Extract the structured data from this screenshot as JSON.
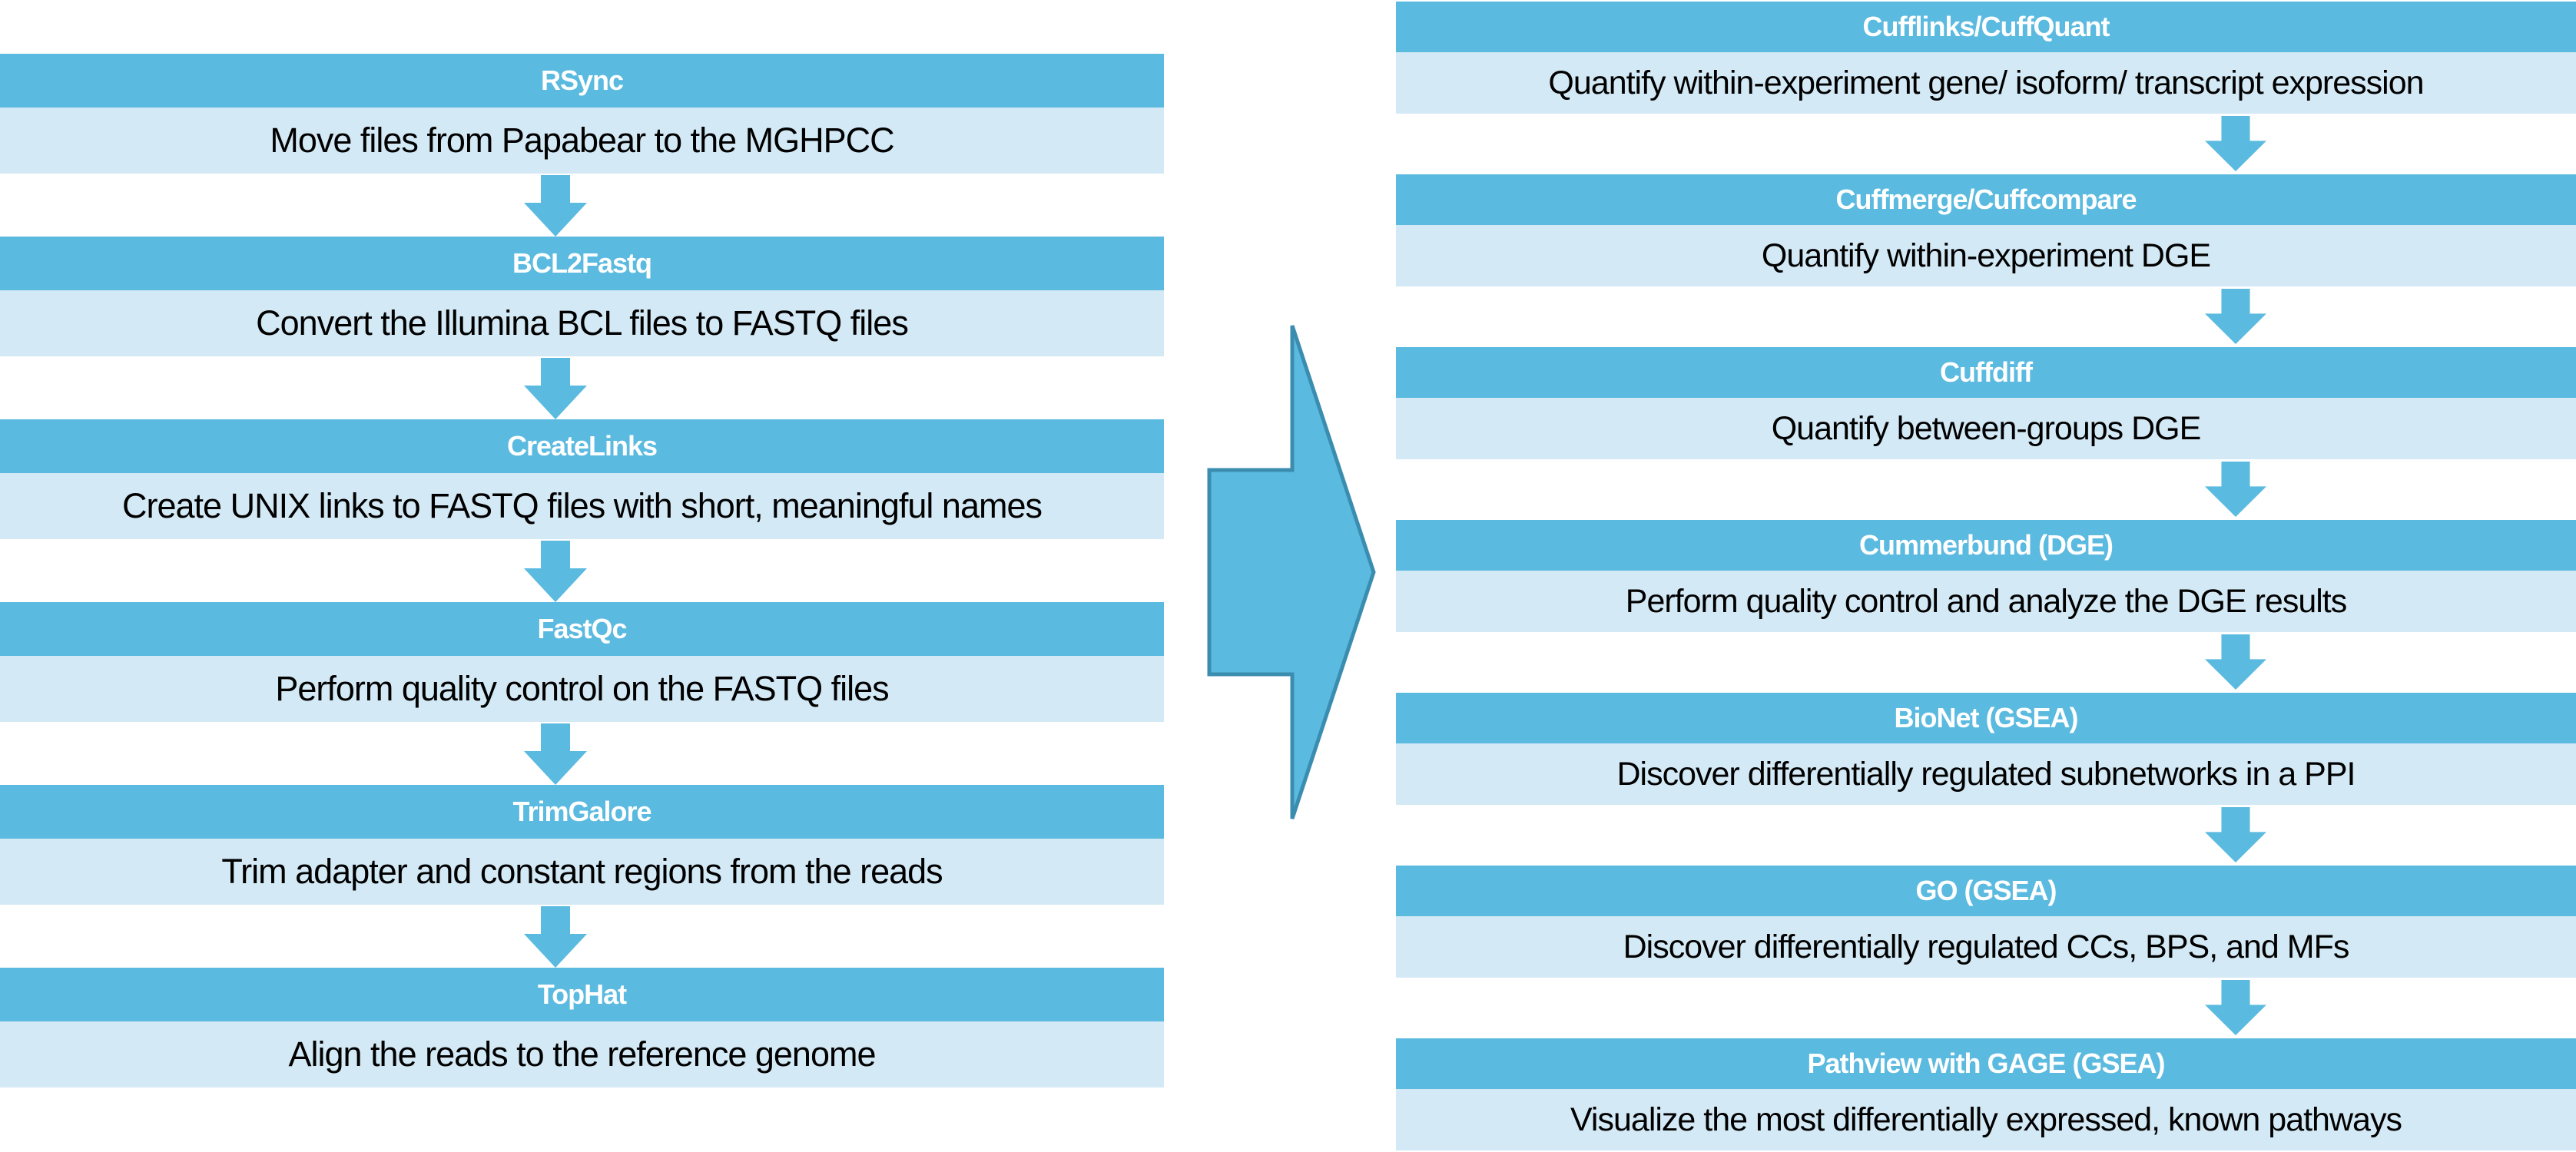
{
  "colors": {
    "header_fill": "#5bbadf",
    "description_fill": "#d3e9f5",
    "arrow_fill": "#5bbadf",
    "arrow_stroke": "#3b8db0"
  },
  "left_steps": [
    {
      "tool": "RSync",
      "description": "Move files from Papabear to the MGHPCC"
    },
    {
      "tool": "BCL2Fastq",
      "description": "Convert the Illumina BCL files to FASTQ files"
    },
    {
      "tool": "CreateLinks",
      "description": "Create UNIX links to FASTQ files with short, meaningful names"
    },
    {
      "tool": "FastQc",
      "description": "Perform quality control on the FASTQ files"
    },
    {
      "tool": "TrimGalore",
      "description": "Trim adapter and constant regions from the reads"
    },
    {
      "tool": "TopHat",
      "description": "Align the reads to the reference genome"
    }
  ],
  "right_steps": [
    {
      "tool": "Cufflinks/CuffQuant",
      "description": "Quantify within-experiment gene/ isoform/ transcript expression"
    },
    {
      "tool": "Cuffmerge/Cuffcompare",
      "description": "Quantify within-experiment DGE"
    },
    {
      "tool": "Cuffdiff",
      "description": "Quantify between-groups DGE"
    },
    {
      "tool": "Cummerbund (DGE)",
      "description": "Perform quality control and analyze the DGE results"
    },
    {
      "tool": "BioNet (GSEA)",
      "description": "Discover differentially regulated subnetworks in a PPI"
    },
    {
      "tool": "GO (GSEA)",
      "description": "Discover differentially regulated CCs, BPS, and MFs"
    },
    {
      "tool": "Pathview with GAGE (GSEA)",
      "description": "Visualize the most differentially expressed, known pathways"
    }
  ]
}
